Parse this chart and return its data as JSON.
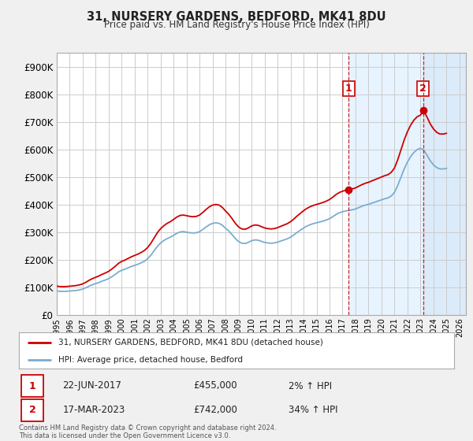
{
  "title": "31, NURSERY GARDENS, BEDFORD, MK41 8DU",
  "subtitle": "Price paid vs. HM Land Registry's House Price Index (HPI)",
  "ylabel_ticks": [
    "£0",
    "£100K",
    "£200K",
    "£300K",
    "£400K",
    "£500K",
    "£600K",
    "£700K",
    "£800K",
    "£900K"
  ],
  "ytick_values": [
    0,
    100000,
    200000,
    300000,
    400000,
    500000,
    600000,
    700000,
    800000,
    900000
  ],
  "ylim": [
    0,
    950000
  ],
  "xlim_start": 1995.0,
  "xlim_end": 2026.5,
  "background_color": "#f0f0f0",
  "plot_bg_color": "#ffffff",
  "grid_color": "#cccccc",
  "sale1_x": 2017.47,
  "sale1_y": 455000,
  "sale2_x": 2023.21,
  "sale2_y": 742000,
  "sale1_label": "22-JUN-2017",
  "sale1_price": "£455,000",
  "sale1_pct": "2% ↑ HPI",
  "sale2_label": "17-MAR-2023",
  "sale2_price": "£742,000",
  "sale2_pct": "34% ↑ HPI",
  "legend_line1": "31, NURSERY GARDENS, BEDFORD, MK41 8DU (detached house)",
  "legend_line2": "HPI: Average price, detached house, Bedford",
  "footer": "Contains HM Land Registry data © Crown copyright and database right 2024.\nThis data is licensed under the Open Government Licence v3.0.",
  "line_red": "#cc0000",
  "line_blue": "#7aadcf",
  "shade_color": "#ddeeff",
  "shade_alpha": 0.7,
  "hpi_years": [
    1995.0,
    1995.25,
    1995.5,
    1995.75,
    1996.0,
    1996.25,
    1996.5,
    1996.75,
    1997.0,
    1997.25,
    1997.5,
    1997.75,
    1998.0,
    1998.25,
    1998.5,
    1998.75,
    1999.0,
    1999.25,
    1999.5,
    1999.75,
    2000.0,
    2000.25,
    2000.5,
    2000.75,
    2001.0,
    2001.25,
    2001.5,
    2001.75,
    2002.0,
    2002.25,
    2002.5,
    2002.75,
    2003.0,
    2003.25,
    2003.5,
    2003.75,
    2004.0,
    2004.25,
    2004.5,
    2004.75,
    2005.0,
    2005.25,
    2005.5,
    2005.75,
    2006.0,
    2006.25,
    2006.5,
    2006.75,
    2007.0,
    2007.25,
    2007.5,
    2007.75,
    2008.0,
    2008.25,
    2008.5,
    2008.75,
    2009.0,
    2009.25,
    2009.5,
    2009.75,
    2010.0,
    2010.25,
    2010.5,
    2010.75,
    2011.0,
    2011.25,
    2011.5,
    2011.75,
    2012.0,
    2012.25,
    2012.5,
    2012.75,
    2013.0,
    2013.25,
    2013.5,
    2013.75,
    2014.0,
    2014.25,
    2014.5,
    2014.75,
    2015.0,
    2015.25,
    2015.5,
    2015.75,
    2016.0,
    2016.25,
    2016.5,
    2016.75,
    2017.0,
    2017.25,
    2017.5,
    2017.75,
    2018.0,
    2018.25,
    2018.5,
    2018.75,
    2019.0,
    2019.25,
    2019.5,
    2019.75,
    2020.0,
    2020.25,
    2020.5,
    2020.75,
    2021.0,
    2021.25,
    2021.5,
    2021.75,
    2022.0,
    2022.25,
    2022.5,
    2022.75,
    2023.0,
    2023.25,
    2023.5,
    2023.75,
    2024.0,
    2024.25,
    2024.5,
    2024.75,
    2025.0
  ],
  "hpi_values": [
    88000,
    87000,
    86500,
    87000,
    88000,
    89000,
    90000,
    92000,
    95000,
    100000,
    106000,
    111000,
    115000,
    119000,
    124000,
    128000,
    133000,
    140000,
    148000,
    157000,
    163000,
    167000,
    172000,
    177000,
    181000,
    185000,
    190000,
    196000,
    205000,
    218000,
    234000,
    250000,
    262000,
    271000,
    278000,
    283000,
    290000,
    297000,
    302000,
    303000,
    301000,
    299000,
    298000,
    299000,
    303000,
    311000,
    320000,
    328000,
    333000,
    335000,
    333000,
    326000,
    315000,
    305000,
    292000,
    278000,
    267000,
    261000,
    260000,
    264000,
    270000,
    273000,
    272000,
    268000,
    264000,
    262000,
    261000,
    262000,
    265000,
    269000,
    273000,
    277000,
    283000,
    291000,
    300000,
    308000,
    316000,
    323000,
    328000,
    332000,
    335000,
    338000,
    341000,
    345000,
    350000,
    357000,
    365000,
    371000,
    375000,
    378000,
    380000,
    382000,
    385000,
    390000,
    395000,
    399000,
    402000,
    406000,
    410000,
    414000,
    418000,
    422000,
    425000,
    432000,
    445000,
    470000,
    500000,
    530000,
    555000,
    575000,
    590000,
    600000,
    605000,
    598000,
    580000,
    560000,
    545000,
    535000,
    530000,
    530000,
    532000
  ],
  "shade_start1": 2017.47,
  "shade_end1": 2026.5,
  "shade_start2": 2023.21,
  "shade_end2": 2026.5,
  "shade2_color": "#cce0f0"
}
